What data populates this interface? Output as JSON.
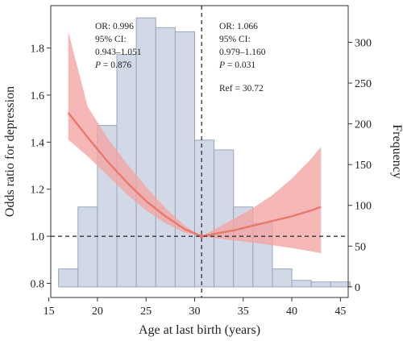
{
  "chart_data": {
    "type": "bar",
    "xlabel": "Age at last birth (years)",
    "ylabel_left": "Odds ratio for depression",
    "ylabel_right": "Frequency",
    "xlim": [
      15.2,
      45.8
    ],
    "ylim_left": [
      0.74,
      1.98
    ],
    "ylim_right": [
      -13,
      345
    ],
    "xticks": [
      15,
      20,
      25,
      30,
      35,
      40,
      45
    ],
    "yticks_left": [
      0.8,
      1.0,
      1.2,
      1.4,
      1.6,
      1.8
    ],
    "yticks_right": [
      0,
      50,
      100,
      150,
      200,
      250,
      300
    ],
    "histogram": {
      "bin_edges": [
        16,
        18,
        20,
        22,
        24,
        26,
        28,
        30,
        32,
        34,
        36,
        38,
        40,
        42,
        44,
        46
      ],
      "counts": [
        22,
        98,
        198,
        285,
        330,
        318,
        313,
        180,
        168,
        98,
        78,
        22,
        8,
        6,
        6
      ],
      "color": "#d1d9e6"
    },
    "or_curve": {
      "color": "#e9786d",
      "band_color": "#f4a3a3",
      "x": [
        17,
        19,
        21,
        23,
        25,
        27,
        29,
        30.72,
        32,
        34,
        36,
        38,
        40,
        42,
        43
      ],
      "or": [
        1.525,
        1.42,
        1.32,
        1.23,
        1.15,
        1.085,
        1.03,
        1.0,
        1.01,
        1.025,
        1.045,
        1.065,
        1.085,
        1.11,
        1.125
      ],
      "lower": [
        1.41,
        1.34,
        1.26,
        1.18,
        1.11,
        1.055,
        1.015,
        1.0,
        0.993,
        0.982,
        0.973,
        0.962,
        0.95,
        0.936,
        0.928
      ],
      "upper": [
        1.87,
        1.55,
        1.42,
        1.31,
        1.21,
        1.12,
        1.045,
        1.0,
        1.028,
        1.074,
        1.12,
        1.175,
        1.245,
        1.33,
        1.38
      ]
    },
    "reference": {
      "x": 30.72,
      "y": 1.0
    },
    "annotations": {
      "left": {
        "or": "OR: 0.996",
        "ci_label": "95% CI:",
        "ci": "0.943–1.051",
        "p_symbol": "P",
        "p_value": " = 0.876"
      },
      "right": {
        "or": "OR: 1.066",
        "ci_label": "95% CI:",
        "ci": "0.979–1.160",
        "p_symbol": "P",
        "p_value": " = 0.031",
        "ref": "Ref = 30.72"
      }
    }
  }
}
